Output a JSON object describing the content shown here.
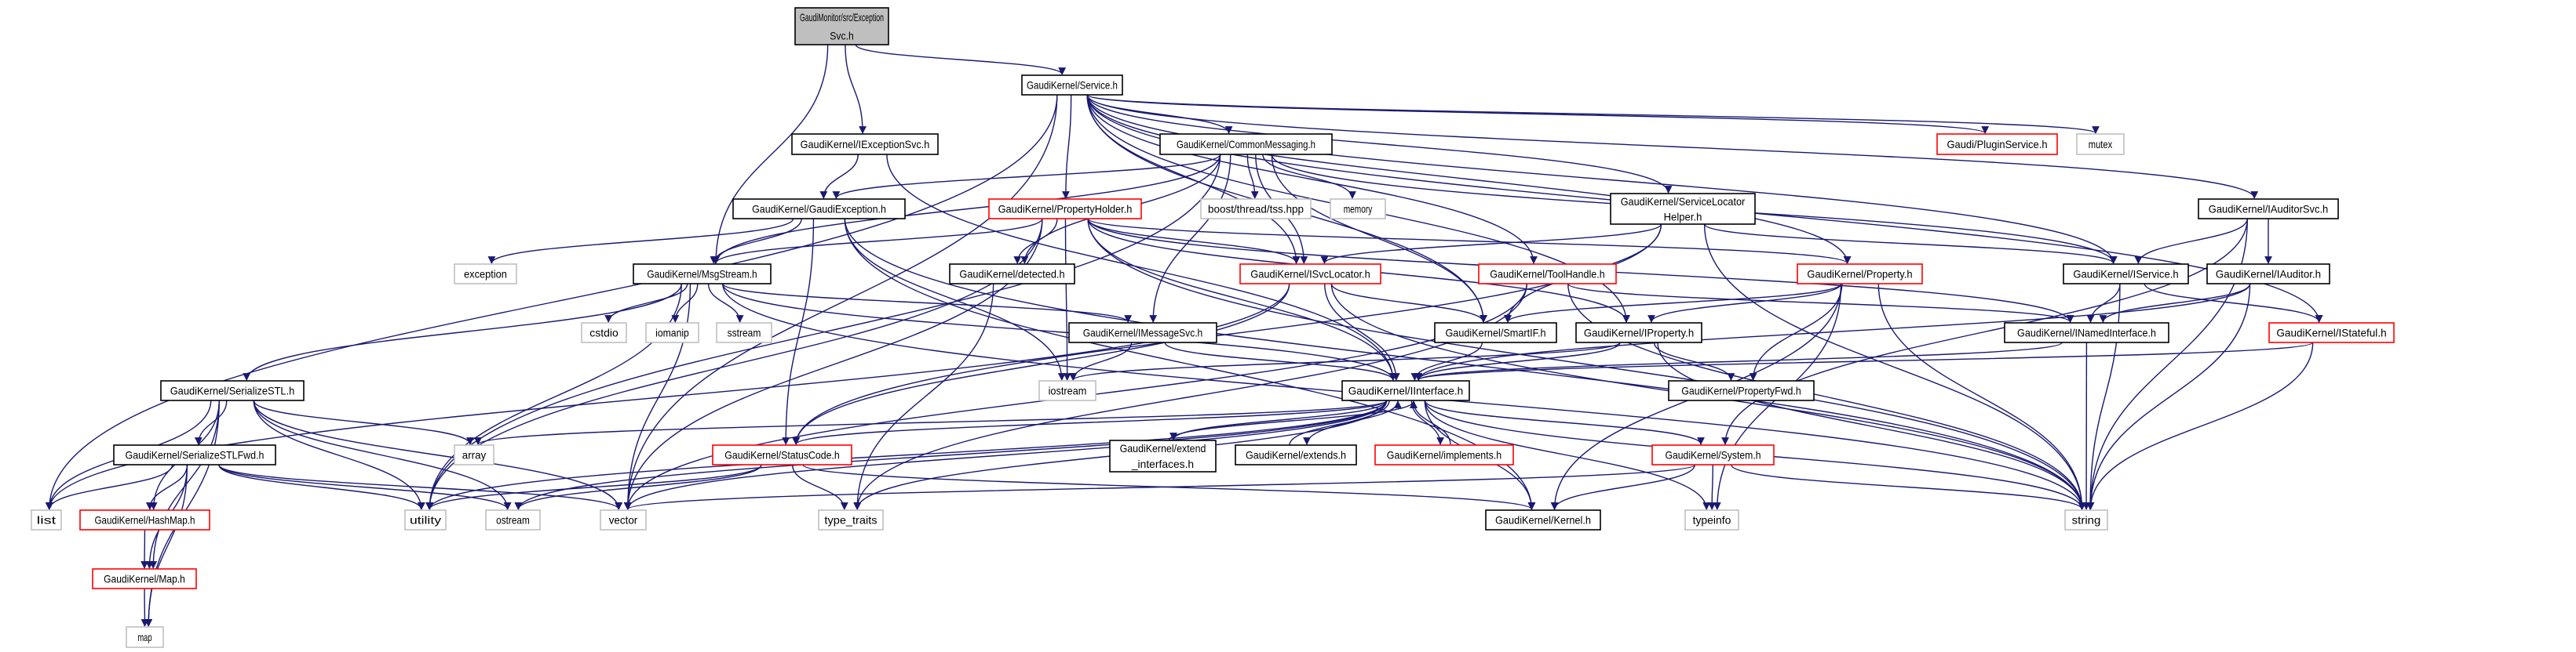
{
  "graph": {
    "edge_color": "#191970",
    "colors": {
      "root_fill": "#bfbfbf",
      "normal_border": "#000000",
      "truncated_border": "#ff0000",
      "external_border": "#bfbfbf"
    },
    "nodes": [
      {
        "id": "root",
        "lines": [
          "GaudiMonitor/src/Exception",
          "Svc.h"
        ],
        "kind": "root"
      },
      {
        "id": "service",
        "lines": [
          "GaudiKernel/Service.h"
        ],
        "kind": "normal"
      },
      {
        "id": "iexceptionsvc",
        "lines": [
          "GaudiKernel/IExceptionSvc.h"
        ],
        "kind": "normal"
      },
      {
        "id": "commonmessaging",
        "lines": [
          "GaudiKernel/CommonMessaging.h"
        ],
        "kind": "normal"
      },
      {
        "id": "pluginservice",
        "lines": [
          "Gaudi/PluginService.h"
        ],
        "kind": "truncated"
      },
      {
        "id": "mutex",
        "lines": [
          "mutex"
        ],
        "kind": "external"
      },
      {
        "id": "gaudiexception",
        "lines": [
          "GaudiKernel/GaudiException.h"
        ],
        "kind": "normal"
      },
      {
        "id": "propertyholder",
        "lines": [
          "GaudiKernel/PropertyHolder.h"
        ],
        "kind": "truncated"
      },
      {
        "id": "boosttss",
        "lines": [
          "boost/thread/tss.hpp"
        ],
        "kind": "external"
      },
      {
        "id": "memory",
        "lines": [
          "memory"
        ],
        "kind": "external"
      },
      {
        "id": "servicelocatorhelper",
        "lines": [
          "GaudiKernel/ServiceLocator",
          "Helper.h"
        ],
        "kind": "normal"
      },
      {
        "id": "iauditorsvc",
        "lines": [
          "GaudiKernel/IAuditorSvc.h"
        ],
        "kind": "normal"
      },
      {
        "id": "exception",
        "lines": [
          "exception"
        ],
        "kind": "external"
      },
      {
        "id": "msgstream",
        "lines": [
          "GaudiKernel/MsgStream.h"
        ],
        "kind": "normal"
      },
      {
        "id": "detected",
        "lines": [
          "GaudiKernel/detected.h"
        ],
        "kind": "normal"
      },
      {
        "id": "isvclocator",
        "lines": [
          "GaudiKernel/ISvcLocator.h"
        ],
        "kind": "truncated"
      },
      {
        "id": "toolhandle",
        "lines": [
          "GaudiKernel/ToolHandle.h"
        ],
        "kind": "truncated"
      },
      {
        "id": "property",
        "lines": [
          "GaudiKernel/Property.h"
        ],
        "kind": "truncated"
      },
      {
        "id": "iservice",
        "lines": [
          "GaudiKernel/IService.h"
        ],
        "kind": "normal"
      },
      {
        "id": "iauditor",
        "lines": [
          "GaudiKernel/IAuditor.h"
        ],
        "kind": "normal"
      },
      {
        "id": "cstdio",
        "lines": [
          "cstdio"
        ],
        "kind": "external"
      },
      {
        "id": "iomanip",
        "lines": [
          "iomanip"
        ],
        "kind": "external"
      },
      {
        "id": "sstream",
        "lines": [
          "sstream"
        ],
        "kind": "external"
      },
      {
        "id": "imessagesvc",
        "lines": [
          "GaudiKernel/IMessageSvc.h"
        ],
        "kind": "normal"
      },
      {
        "id": "smartif",
        "lines": [
          "GaudiKernel/SmartIF.h"
        ],
        "kind": "normal"
      },
      {
        "id": "iproperty",
        "lines": [
          "GaudiKernel/IProperty.h"
        ],
        "kind": "normal"
      },
      {
        "id": "inamedinterface",
        "lines": [
          "GaudiKernel/INamedInterface.h"
        ],
        "kind": "normal"
      },
      {
        "id": "istateful",
        "lines": [
          "GaudiKernel/IStateful.h"
        ],
        "kind": "truncated"
      },
      {
        "id": "serializestl",
        "lines": [
          "GaudiKernel/SerializeSTL.h"
        ],
        "kind": "normal"
      },
      {
        "id": "iostream",
        "lines": [
          "iostream"
        ],
        "kind": "external"
      },
      {
        "id": "iinterface",
        "lines": [
          "GaudiKernel/IInterface.h"
        ],
        "kind": "normal"
      },
      {
        "id": "propertyfwd",
        "lines": [
          "GaudiKernel/PropertyFwd.h"
        ],
        "kind": "normal"
      },
      {
        "id": "serializestlfwd",
        "lines": [
          "GaudiKernel/SerializeSTLFwd.h"
        ],
        "kind": "normal"
      },
      {
        "id": "array",
        "lines": [
          "array"
        ],
        "kind": "external"
      },
      {
        "id": "statuscode",
        "lines": [
          "GaudiKernel/StatusCode.h"
        ],
        "kind": "truncated"
      },
      {
        "id": "extendinterfaces",
        "lines": [
          "GaudiKernel/extend",
          "_interfaces.h"
        ],
        "kind": "normal"
      },
      {
        "id": "extends",
        "lines": [
          "GaudiKernel/extends.h"
        ],
        "kind": "normal"
      },
      {
        "id": "implements",
        "lines": [
          "GaudiKernel/implements.h"
        ],
        "kind": "truncated"
      },
      {
        "id": "system",
        "lines": [
          "GaudiKernel/System.h"
        ],
        "kind": "truncated"
      },
      {
        "id": "list",
        "lines": [
          "list"
        ],
        "kind": "external"
      },
      {
        "id": "hashmap",
        "lines": [
          "GaudiKernel/HashMap.h"
        ],
        "kind": "truncated"
      },
      {
        "id": "utility",
        "lines": [
          "utility"
        ],
        "kind": "external"
      },
      {
        "id": "ostream",
        "lines": [
          "ostream"
        ],
        "kind": "external"
      },
      {
        "id": "vector",
        "lines": [
          "vector"
        ],
        "kind": "external"
      },
      {
        "id": "typetraits",
        "lines": [
          "type_traits"
        ],
        "kind": "external"
      },
      {
        "id": "kernel",
        "lines": [
          "GaudiKernel/Kernel.h"
        ],
        "kind": "normal"
      },
      {
        "id": "typeinfo",
        "lines": [
          "typeinfo"
        ],
        "kind": "external"
      },
      {
        "id": "string",
        "lines": [
          "string"
        ],
        "kind": "external"
      },
      {
        "id": "gkmap",
        "lines": [
          "GaudiKernel/Map.h"
        ],
        "kind": "truncated"
      },
      {
        "id": "map",
        "lines": [
          "map"
        ],
        "kind": "external"
      }
    ],
    "edges": [
      [
        "root",
        "service"
      ],
      [
        "root",
        "iexceptionsvc"
      ],
      [
        "root",
        "msgstream"
      ],
      [
        "service",
        "commonmessaging"
      ],
      [
        "service",
        "propertyholder"
      ],
      [
        "service",
        "isvclocator"
      ],
      [
        "service",
        "toolhandle"
      ],
      [
        "service",
        "smartif"
      ],
      [
        "service",
        "iproperty"
      ],
      [
        "service",
        "servicelocatorhelper"
      ],
      [
        "service",
        "property"
      ],
      [
        "service",
        "pluginservice"
      ],
      [
        "service",
        "mutex"
      ],
      [
        "service",
        "iservice"
      ],
      [
        "service",
        "iauditorsvc"
      ],
      [
        "service",
        "istateful"
      ],
      [
        "service",
        "vector"
      ],
      [
        "service",
        "list"
      ],
      [
        "iexceptionsvc",
        "gaudiexception"
      ],
      [
        "iexceptionsvc",
        "iinterface"
      ],
      [
        "commonmessaging",
        "gaudiexception"
      ],
      [
        "commonmessaging",
        "boosttss"
      ],
      [
        "commonmessaging",
        "memory"
      ],
      [
        "commonmessaging",
        "msgstream"
      ],
      [
        "commonmessaging",
        "detected"
      ],
      [
        "commonmessaging",
        "isvclocator"
      ],
      [
        "commonmessaging",
        "imessagesvc"
      ],
      [
        "commonmessaging",
        "smartif"
      ],
      [
        "commonmessaging",
        "iservice"
      ],
      [
        "commonmessaging",
        "utility"
      ],
      [
        "gaudiexception",
        "exception"
      ],
      [
        "gaudiexception",
        "msgstream"
      ],
      [
        "gaudiexception",
        "iostream"
      ],
      [
        "gaudiexception",
        "statuscode"
      ],
      [
        "gaudiexception",
        "kernel"
      ],
      [
        "gaudiexception",
        "string"
      ],
      [
        "propertyholder",
        "detected"
      ],
      [
        "propertyholder",
        "msgstream"
      ],
      [
        "propertyholder",
        "isvclocator"
      ],
      [
        "propertyholder",
        "iproperty"
      ],
      [
        "propertyholder",
        "property"
      ],
      [
        "propertyholder",
        "inamedinterface"
      ],
      [
        "propertyholder",
        "iinterface"
      ],
      [
        "propertyholder",
        "iostream"
      ],
      [
        "propertyholder",
        "vector"
      ],
      [
        "propertyholder",
        "string"
      ],
      [
        "propertyholder",
        "utility"
      ],
      [
        "servicelocatorhelper",
        "isvclocator"
      ],
      [
        "servicelocatorhelper",
        "smartif"
      ],
      [
        "servicelocatorhelper",
        "iservice"
      ],
      [
        "servicelocatorhelper",
        "string"
      ],
      [
        "servicelocatorhelper",
        "statuscode"
      ],
      [
        "iauditorsvc",
        "iservice"
      ],
      [
        "iauditorsvc",
        "iauditor"
      ],
      [
        "iauditorsvc",
        "system"
      ],
      [
        "iauditorsvc",
        "string"
      ],
      [
        "msgstream",
        "cstdio"
      ],
      [
        "msgstream",
        "iomanip"
      ],
      [
        "msgstream",
        "sstream"
      ],
      [
        "msgstream",
        "serializestl"
      ],
      [
        "msgstream",
        "imessagesvc"
      ],
      [
        "msgstream",
        "iinterface"
      ],
      [
        "msgstream",
        "vector"
      ],
      [
        "msgstream",
        "utility"
      ],
      [
        "msgstream",
        "string"
      ],
      [
        "detected",
        "typetraits"
      ],
      [
        "isvclocator",
        "smartif"
      ],
      [
        "isvclocator",
        "iinterface"
      ],
      [
        "isvclocator",
        "statuscode"
      ],
      [
        "isvclocator",
        "string"
      ],
      [
        "isvclocator",
        "list"
      ],
      [
        "toolhandle",
        "inamedinterface"
      ],
      [
        "toolhandle",
        "vector"
      ],
      [
        "toolhandle",
        "typetraits"
      ],
      [
        "toolhandle",
        "string"
      ],
      [
        "property",
        "smartif"
      ],
      [
        "property",
        "iproperty"
      ],
      [
        "property",
        "propertyfwd"
      ],
      [
        "property",
        "kernel"
      ],
      [
        "property",
        "typeinfo"
      ],
      [
        "property",
        "string"
      ],
      [
        "iservice",
        "inamedinterface"
      ],
      [
        "iservice",
        "istateful"
      ],
      [
        "iservice",
        "string"
      ],
      [
        "iauditor",
        "inamedinterface"
      ],
      [
        "iauditor",
        "iinterface"
      ],
      [
        "iauditor",
        "string"
      ],
      [
        "imessagesvc",
        "iostream"
      ],
      [
        "imessagesvc",
        "iinterface"
      ],
      [
        "smartif",
        "iinterface"
      ],
      [
        "iproperty",
        "iinterface"
      ],
      [
        "iproperty",
        "propertyfwd"
      ],
      [
        "iproperty",
        "iostream"
      ],
      [
        "iproperty",
        "string"
      ],
      [
        "inamedinterface",
        "iinterface"
      ],
      [
        "inamedinterface",
        "string"
      ],
      [
        "istateful",
        "iinterface"
      ],
      [
        "istateful",
        "string"
      ],
      [
        "iinterface",
        "array"
      ],
      [
        "iinterface",
        "statuscode"
      ],
      [
        "iinterface",
        "extendinterfaces"
      ],
      [
        "iinterface",
        "extends"
      ],
      [
        "iinterface",
        "implements"
      ],
      [
        "iinterface",
        "system"
      ],
      [
        "iinterface",
        "kernel"
      ],
      [
        "iinterface",
        "typeinfo"
      ],
      [
        "iinterface",
        "typetraits"
      ],
      [
        "iinterface",
        "ostream"
      ],
      [
        "iinterface",
        "vector"
      ],
      [
        "iinterface",
        "string"
      ],
      [
        "iinterface",
        "utility"
      ],
      [
        "extendinterfaces",
        "iinterface"
      ],
      [
        "extends",
        "iinterface"
      ],
      [
        "implements",
        "iinterface"
      ],
      [
        "statuscode",
        "ostream"
      ],
      [
        "statuscode",
        "utility"
      ],
      [
        "statuscode",
        "typetraits"
      ],
      [
        "statuscode",
        "kernel"
      ],
      [
        "system",
        "kernel"
      ],
      [
        "system",
        "string"
      ],
      [
        "system",
        "vector"
      ],
      [
        "system",
        "typeinfo"
      ],
      [
        "serializestl",
        "serializestlfwd"
      ],
      [
        "serializestl",
        "array"
      ],
      [
        "serializestl",
        "list"
      ],
      [
        "serializestl",
        "hashmap"
      ],
      [
        "serializestl",
        "gkmap"
      ],
      [
        "serializestl",
        "map"
      ],
      [
        "serializestl",
        "utility"
      ],
      [
        "serializestl",
        "ostream"
      ],
      [
        "serializestl",
        "vector"
      ],
      [
        "serializestlfwd",
        "list"
      ],
      [
        "serializestlfwd",
        "hashmap"
      ],
      [
        "serializestlfwd",
        "gkmap"
      ],
      [
        "serializestlfwd",
        "map"
      ],
      [
        "serializestlfwd",
        "utility"
      ],
      [
        "serializestlfwd",
        "ostream"
      ],
      [
        "serializestlfwd",
        "vector"
      ],
      [
        "hashmap",
        "gkmap"
      ],
      [
        "gkmap",
        "map"
      ]
    ]
  }
}
